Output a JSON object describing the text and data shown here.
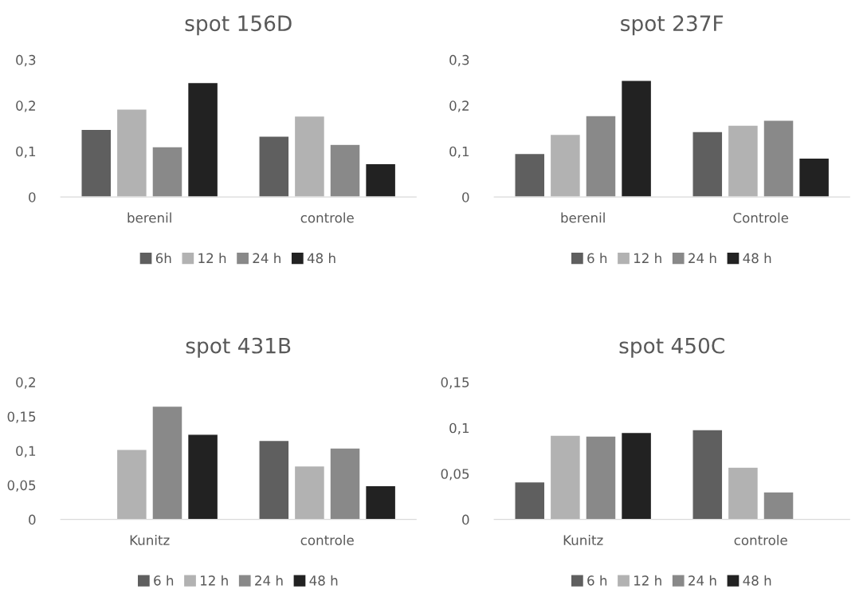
{
  "chart_data": [
    {
      "type": "bar",
      "title": "spot 156D",
      "categories": [
        "berenil",
        "controle"
      ],
      "ylim": [
        0,
        0.3
      ],
      "yticks": [
        0,
        {
          "value": 0.1,
          "label": "0,1"
        },
        {
          "value": 0.2,
          "label": "0,2"
        },
        {
          "value": 0.3,
          "label": "0,3"
        }
      ],
      "grid": false,
      "legend": "bottom",
      "series": [
        {
          "name": "6h",
          "color": "#5f5f5f",
          "values": [
            0.148,
            0.133
          ]
        },
        {
          "name": "12 h",
          "color": "#b2b2b2",
          "values": [
            0.192,
            0.177
          ]
        },
        {
          "name": "24 h",
          "color": "#898989",
          "values": [
            0.11,
            0.115
          ]
        },
        {
          "name": "48 h",
          "color": "#222222",
          "values": [
            0.25,
            0.073
          ]
        }
      ]
    },
    {
      "type": "bar",
      "title": "spot 237F",
      "categories": [
        "berenil",
        "Controle"
      ],
      "ylim": [
        0,
        0.3
      ],
      "yticks": [
        0,
        {
          "value": 0.1,
          "label": "0,1"
        },
        {
          "value": 0.2,
          "label": "0,2"
        },
        {
          "value": 0.3,
          "label": "0,3"
        }
      ],
      "grid": false,
      "legend": "bottom",
      "series": [
        {
          "name": "6 h",
          "color": "#5f5f5f",
          "values": [
            0.095,
            0.143
          ]
        },
        {
          "name": "12 h",
          "color": "#b2b2b2",
          "values": [
            0.137,
            0.157
          ]
        },
        {
          "name": "24 h",
          "color": "#898989",
          "values": [
            0.178,
            0.168
          ]
        },
        {
          "name": "48 h",
          "color": "#222222",
          "values": [
            0.255,
            0.085
          ]
        }
      ]
    },
    {
      "type": "bar",
      "title": "spot 431B",
      "categories": [
        "Kunitz",
        "controle"
      ],
      "ylim": [
        0,
        0.2
      ],
      "yticks": [
        0,
        {
          "value": 0.05,
          "label": "0,05"
        },
        {
          "value": 0.1,
          "label": "0,1"
        },
        {
          "value": 0.15,
          "label": "0,15"
        },
        {
          "value": 0.2,
          "label": "0,2"
        }
      ],
      "grid": false,
      "legend": "bottom",
      "series": [
        {
          "name": "6 h",
          "color": "#5f5f5f",
          "values": [
            null,
            0.115
          ]
        },
        {
          "name": "12 h",
          "color": "#b2b2b2",
          "values": [
            0.102,
            0.078
          ]
        },
        {
          "name": "24 h",
          "color": "#898989",
          "values": [
            0.165,
            0.104
          ]
        },
        {
          "name": "48 h",
          "color": "#222222",
          "values": [
            0.124,
            0.049
          ]
        }
      ]
    },
    {
      "type": "bar",
      "title": "spot 450C",
      "categories": [
        "Kunitz",
        "controle"
      ],
      "ylim": [
        0,
        0.15
      ],
      "yticks": [
        0,
        {
          "value": 0.05,
          "label": "0,05"
        },
        {
          "value": 0.1,
          "label": "0,1"
        },
        {
          "value": 0.15,
          "label": "0,15"
        }
      ],
      "grid": false,
      "legend": "bottom",
      "series": [
        {
          "name": "6 h",
          "color": "#5f5f5f",
          "values": [
            0.041,
            0.098
          ]
        },
        {
          "name": "12 h",
          "color": "#b2b2b2",
          "values": [
            0.092,
            0.057
          ]
        },
        {
          "name": "24 h",
          "color": "#898989",
          "values": [
            0.091,
            0.03
          ]
        },
        {
          "name": "48 h",
          "color": "#222222",
          "values": [
            0.095,
            null
          ]
        }
      ]
    }
  ]
}
